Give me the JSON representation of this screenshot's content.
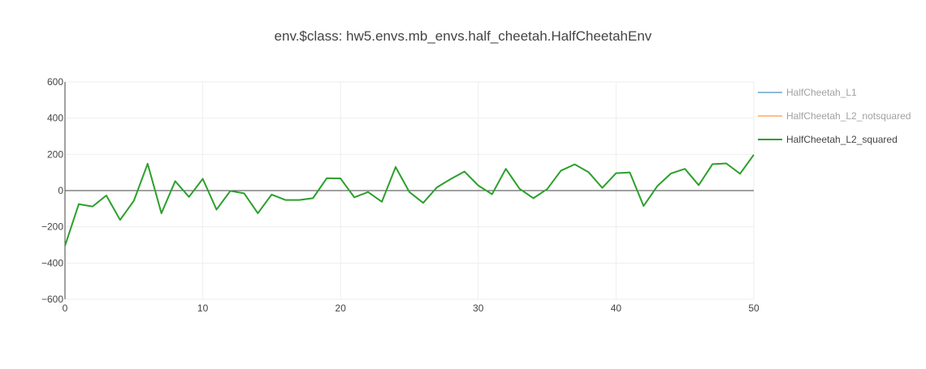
{
  "chart_data": {
    "type": "line",
    "title": "env.$class: hw5.envs.mb_envs.half_cheetah.HalfCheetahEnv",
    "xlabel": "",
    "ylabel": "",
    "xlim": [
      0,
      50
    ],
    "ylim": [
      -600,
      600
    ],
    "x_ticks": [
      0,
      10,
      20,
      30,
      40,
      50
    ],
    "y_ticks": [
      600,
      400,
      200,
      0,
      -200,
      -400,
      -600
    ],
    "x_tick_labels": [
      "0",
      "10",
      "20",
      "30",
      "40",
      "50"
    ],
    "y_tick_labels": [
      "600",
      "400",
      "200",
      "0",
      "−200",
      "−400",
      "−600"
    ],
    "grid": true,
    "legend_position": "top-right",
    "series": [
      {
        "name": "HalfCheetah_L1",
        "color": "#1f77b4",
        "visible": false,
        "x": [],
        "values": []
      },
      {
        "name": "HalfCheetah_L2_notsquared",
        "color": "#ff7f0e",
        "visible": false,
        "x": [],
        "values": []
      },
      {
        "name": "HalfCheetah_L2_squared",
        "color": "#2ca02c",
        "visible": true,
        "x": [
          0,
          1,
          2,
          3,
          4,
          5,
          6,
          7,
          8,
          9,
          10,
          11,
          12,
          13,
          14,
          15,
          16,
          17,
          18,
          19,
          20,
          21,
          22,
          23,
          24,
          25,
          26,
          27,
          28,
          29,
          30,
          31,
          32,
          33,
          34,
          35,
          36,
          37,
          38,
          39,
          40,
          41,
          42,
          43,
          44,
          45,
          46,
          47,
          48,
          49,
          50
        ],
        "values": [
          -305,
          -75,
          -88,
          -27,
          -162,
          -56,
          148,
          -125,
          52,
          -35,
          65,
          -105,
          -2,
          -15,
          -125,
          -22,
          -52,
          -52,
          -42,
          68,
          67,
          -37,
          -8,
          -62,
          130,
          -8,
          -68,
          18,
          64,
          105,
          28,
          -20,
          120,
          10,
          -42,
          8,
          110,
          145,
          102,
          15,
          96,
          100,
          -85,
          25,
          95,
          120,
          30,
          146,
          150,
          93,
          198
        ]
      }
    ]
  }
}
